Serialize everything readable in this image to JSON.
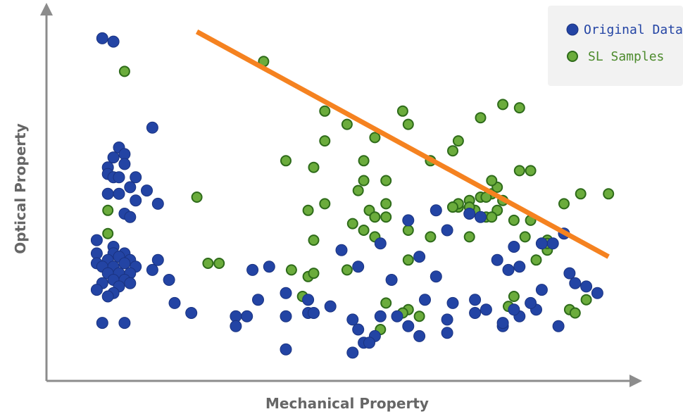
{
  "chart_data": {
    "type": "scatter",
    "xlabel": "Mechanical Property",
    "ylabel": "Optical Property",
    "xlim": [
      0,
      100
    ],
    "ylim": [
      0,
      100
    ],
    "grid": false,
    "legend_position": "top-right",
    "colors": {
      "original": "#2344a4",
      "samples": "#6bac3c",
      "trend": "#f58220",
      "axis": "#8c8c8c"
    },
    "series": [
      {
        "name": "Original Data",
        "points": [
          [
            7,
            98
          ],
          [
            9,
            97
          ],
          [
            16,
            71
          ],
          [
            10,
            65
          ],
          [
            9,
            62
          ],
          [
            11,
            63
          ],
          [
            8,
            59
          ],
          [
            11,
            60
          ],
          [
            8,
            57
          ],
          [
            9,
            56
          ],
          [
            10,
            56
          ],
          [
            13,
            56
          ],
          [
            12,
            53
          ],
          [
            8,
            51
          ],
          [
            10,
            51
          ],
          [
            13,
            49
          ],
          [
            15,
            52
          ],
          [
            17,
            48
          ],
          [
            11,
            45
          ],
          [
            12,
            44
          ],
          [
            6,
            37
          ],
          [
            9,
            35
          ],
          [
            6,
            33
          ],
          [
            9,
            33
          ],
          [
            11,
            33
          ],
          [
            6,
            30
          ],
          [
            8,
            31
          ],
          [
            10,
            32
          ],
          [
            12,
            31
          ],
          [
            7,
            29
          ],
          [
            9,
            29
          ],
          [
            11,
            30
          ],
          [
            13,
            29
          ],
          [
            8,
            27
          ],
          [
            10,
            27
          ],
          [
            12,
            27
          ],
          [
            7,
            24
          ],
          [
            9,
            25
          ],
          [
            11,
            25
          ],
          [
            10,
            23
          ],
          [
            9,
            21
          ],
          [
            6,
            22
          ],
          [
            8,
            20
          ],
          [
            12,
            24
          ],
          [
            16,
            28
          ],
          [
            17,
            31
          ],
          [
            19,
            25
          ],
          [
            20,
            18
          ],
          [
            23,
            15
          ],
          [
            7,
            12
          ],
          [
            11,
            12
          ],
          [
            31,
            14
          ],
          [
            33,
            14
          ],
          [
            31,
            11
          ],
          [
            34,
            28
          ],
          [
            37,
            29
          ],
          [
            35,
            19
          ],
          [
            40,
            21
          ],
          [
            44,
            19
          ],
          [
            48,
            17
          ],
          [
            40,
            14
          ],
          [
            44,
            15
          ],
          [
            45,
            15
          ],
          [
            53,
            29
          ],
          [
            50,
            34
          ],
          [
            57,
            36
          ],
          [
            62,
            43
          ],
          [
            67,
            46
          ],
          [
            64,
            32
          ],
          [
            67,
            26
          ],
          [
            73,
            45
          ],
          [
            69,
            40
          ],
          [
            75,
            44
          ],
          [
            59,
            25
          ],
          [
            65,
            19
          ],
          [
            70,
            18
          ],
          [
            69,
            13
          ],
          [
            62,
            11
          ],
          [
            57,
            14
          ],
          [
            60,
            14
          ],
          [
            56,
            8
          ],
          [
            52,
            13
          ],
          [
            53,
            10
          ],
          [
            64,
            8
          ],
          [
            69,
            9
          ],
          [
            54,
            6
          ],
          [
            78,
            31
          ],
          [
            81,
            35
          ],
          [
            82,
            29
          ],
          [
            74,
            19
          ],
          [
            74,
            15
          ],
          [
            76,
            16
          ],
          [
            80,
            28
          ],
          [
            88,
            36
          ],
          [
            91,
            27
          ],
          [
            94,
            23
          ],
          [
            96,
            21
          ],
          [
            92,
            24
          ],
          [
            86,
            36
          ],
          [
            86,
            22
          ],
          [
            85,
            16
          ],
          [
            82,
            14
          ],
          [
            79,
            11
          ],
          [
            79,
            12
          ],
          [
            81,
            16
          ],
          [
            84,
            18
          ],
          [
            90,
            39
          ],
          [
            89,
            11
          ],
          [
            40,
            4
          ],
          [
            52,
            3
          ],
          [
            55,
            6
          ]
        ]
      },
      {
        "name": "SL Samples",
        "points": [
          [
            11,
            88
          ],
          [
            36,
            91
          ],
          [
            47,
            76
          ],
          [
            61,
            76
          ],
          [
            62,
            72
          ],
          [
            51,
            72
          ],
          [
            47,
            67
          ],
          [
            56,
            68
          ],
          [
            40,
            61
          ],
          [
            54,
            61
          ],
          [
            66,
            61
          ],
          [
            70,
            64
          ],
          [
            71,
            67
          ],
          [
            75,
            74
          ],
          [
            79,
            78
          ],
          [
            82,
            77
          ],
          [
            82,
            58
          ],
          [
            84,
            58
          ],
          [
            54,
            55
          ],
          [
            53,
            52
          ],
          [
            47,
            48
          ],
          [
            24,
            50
          ],
          [
            8,
            46
          ],
          [
            8,
            39
          ],
          [
            26,
            30
          ],
          [
            28,
            30
          ],
          [
            45,
            37
          ],
          [
            52,
            42
          ],
          [
            55,
            46
          ],
          [
            56,
            44
          ],
          [
            58,
            44
          ],
          [
            56,
            38
          ],
          [
            50,
            34
          ],
          [
            51,
            28
          ],
          [
            62,
            31
          ],
          [
            62,
            40
          ],
          [
            71,
            47
          ],
          [
            66,
            38
          ],
          [
            70,
            47
          ],
          [
            71,
            48
          ],
          [
            73,
            49
          ],
          [
            74,
            46
          ],
          [
            76,
            44
          ],
          [
            75,
            50
          ],
          [
            77,
            51
          ],
          [
            78,
            53
          ],
          [
            77,
            55
          ],
          [
            78,
            46
          ],
          [
            81,
            43
          ],
          [
            87,
            37
          ],
          [
            87,
            34
          ],
          [
            85,
            31
          ],
          [
            90,
            48
          ],
          [
            93,
            51
          ],
          [
            98,
            51
          ],
          [
            44,
            26
          ],
          [
            45,
            27
          ],
          [
            41,
            28
          ],
          [
            43,
            20
          ],
          [
            62,
            16
          ],
          [
            61,
            15
          ],
          [
            64,
            14
          ],
          [
            58,
            18
          ],
          [
            57,
            10
          ],
          [
            80,
            17
          ],
          [
            81,
            20
          ],
          [
            91,
            16
          ],
          [
            92,
            15
          ],
          [
            94,
            19
          ],
          [
            73,
            38
          ],
          [
            83,
            38
          ],
          [
            87,
            36
          ],
          [
            73,
            47
          ],
          [
            76,
            50
          ],
          [
            79,
            49
          ],
          [
            77,
            44
          ],
          [
            84,
            43
          ],
          [
            45,
            59
          ],
          [
            58,
            55
          ],
          [
            70,
            47
          ],
          [
            44,
            46
          ],
          [
            54,
            40
          ],
          [
            58,
            48
          ]
        ]
      },
      {
        "name": "",
        "type": "line",
        "points": [
          [
            24,
            100
          ],
          [
            98,
            32
          ]
        ]
      }
    ]
  }
}
